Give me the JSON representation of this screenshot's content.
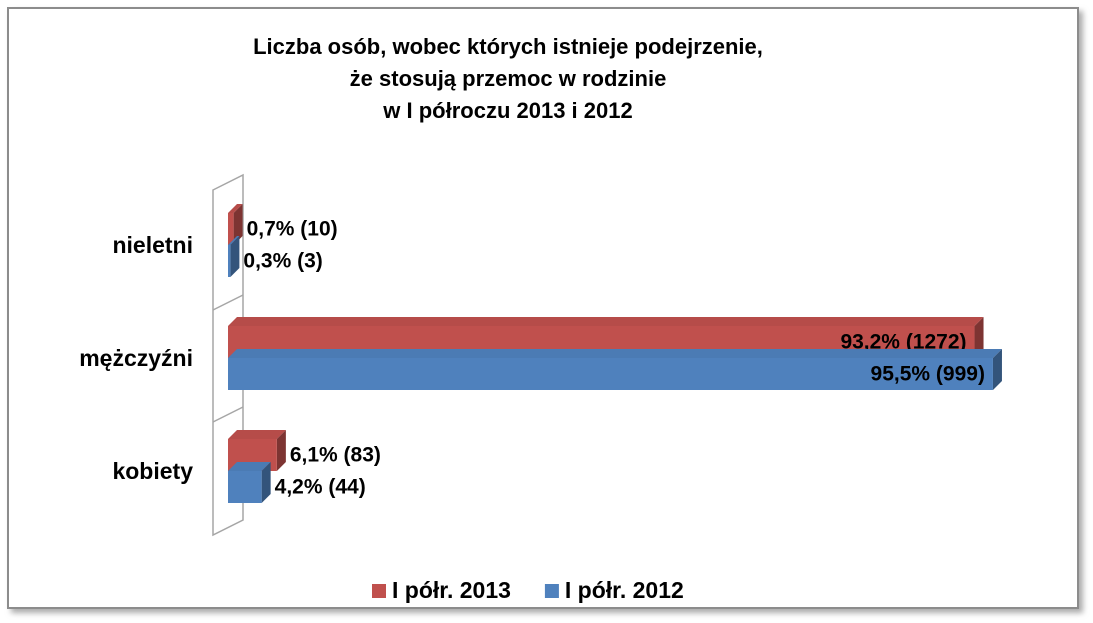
{
  "chart_data": {
    "type": "bar",
    "orientation": "horizontal",
    "title": "Liczba osób, wobec których istnieje podejrzenie,\nże stosują przemoc w rodzinie\nw I półroczu 2013 i 2012",
    "categories": [
      "nieletni",
      "mężczyźni",
      "kobiety"
    ],
    "series": [
      {
        "name": "I półr. 2013",
        "color": "#c0504d",
        "values": [
          0.7,
          93.2,
          6.1
        ],
        "value_labels": [
          "0,7% (10)",
          "93,2% (1272)",
          "6,1% (83)"
        ]
      },
      {
        "name": "I półr. 2012",
        "color": "#4f81bd",
        "values": [
          0.3,
          95.5,
          4.2
        ],
        "value_labels": [
          "0,3% (3)",
          "95,5% (999)",
          "4,2% (44)"
        ]
      }
    ],
    "xlim": [
      0,
      100
    ],
    "legend": "bottom"
  }
}
